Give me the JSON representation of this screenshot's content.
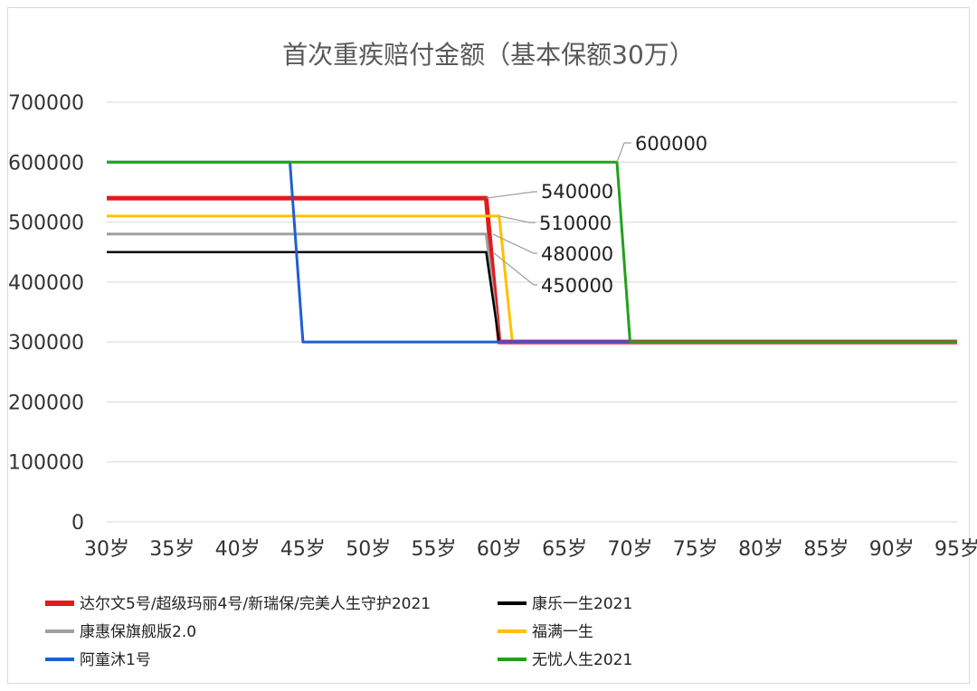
{
  "chart_data": {
    "type": "line",
    "title": "首次重疾赔付金额（基本保额30万）",
    "xlabel": "",
    "ylabel": "",
    "x_tick_labels": [
      "30岁",
      "35岁",
      "40岁",
      "45岁",
      "50岁",
      "55岁",
      "60岁",
      "65岁",
      "70岁",
      "75岁",
      "80岁",
      "85岁",
      "90岁",
      "95岁"
    ],
    "y_tick_labels": [
      "0",
      "100000",
      "200000",
      "300000",
      "400000",
      "500000",
      "600000",
      "700000"
    ],
    "xlim": [
      30,
      95
    ],
    "ylim": [
      0,
      700000
    ],
    "grid": "horizontal",
    "legend_position": "bottom",
    "series": [
      {
        "name": "达尔文5号/超级玛丽4号/新瑞保/完美人生守护2021",
        "color": "#e31a1c",
        "x": [
          30,
          59,
          60,
          95
        ],
        "values": [
          540000,
          540000,
          300000,
          300000
        ]
      },
      {
        "name": "康乐一生2021",
        "color": "#000000",
        "x": [
          30,
          59,
          60,
          95
        ],
        "values": [
          450000,
          450000,
          300000,
          300000
        ]
      },
      {
        "name": "康惠保旗舰版2.0",
        "color": "#a0a0a0",
        "x": [
          30,
          59,
          60,
          95
        ],
        "values": [
          480000,
          480000,
          300000,
          300000
        ]
      },
      {
        "name": "福满一生",
        "color": "#ffc000",
        "x": [
          30,
          60,
          61,
          95
        ],
        "values": [
          510000,
          510000,
          300000,
          300000
        ]
      },
      {
        "name": "阿童沐1号",
        "color": "#1f5fd1",
        "x": [
          30,
          44,
          45,
          95
        ],
        "values": [
          600000,
          600000,
          300000,
          300000
        ]
      },
      {
        "name": "无忧人生2021",
        "color": "#22a11c",
        "x": [
          30,
          69,
          70,
          95
        ],
        "values": [
          600000,
          600000,
          300000,
          300000
        ]
      }
    ],
    "data_labels": [
      "600000",
      "540000",
      "510000",
      "480000",
      "450000"
    ]
  }
}
